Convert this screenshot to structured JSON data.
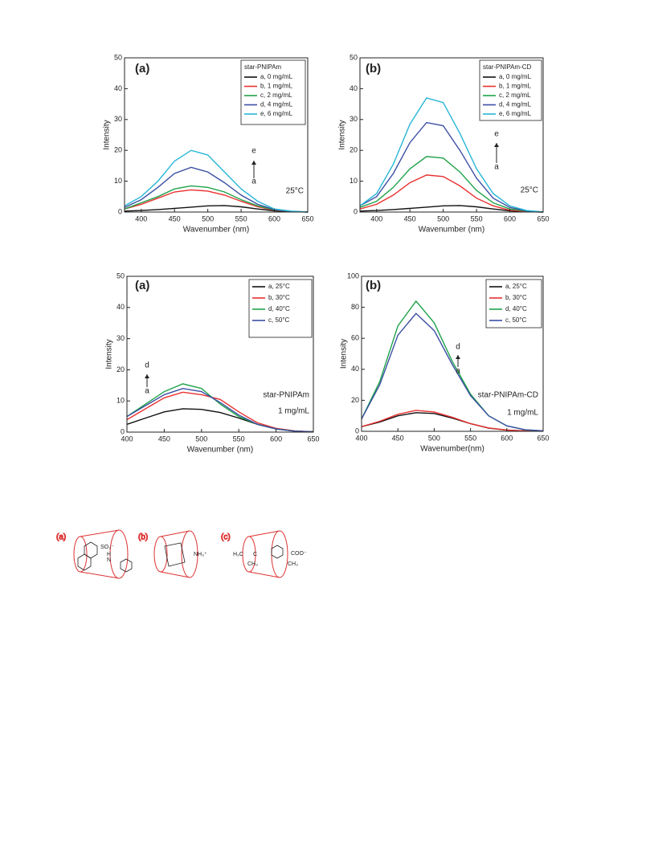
{
  "chart_data": [
    {
      "type": "line",
      "xlabel": "Wavenumber (nm)",
      "ylabel": "Intensity",
      "legend_title": "star-PNIPAm",
      "legend": "upper right",
      "xlim": [
        375,
        650
      ],
      "ylim": [
        0,
        50
      ],
      "xticks": [
        400,
        450,
        500,
        550,
        600,
        650
      ],
      "yticks": [
        0,
        10,
        20,
        30,
        40,
        50
      ],
      "annotations": [
        "(a)",
        "e",
        "a",
        "25°C"
      ],
      "x": [
        375,
        400,
        425,
        450,
        475,
        500,
        525,
        550,
        575,
        600,
        625,
        650
      ],
      "series": [
        {
          "name": "a, 0 mg/mL",
          "color": "#111111",
          "values": [
            0.3,
            0.5,
            0.8,
            1.2,
            1.6,
            2.0,
            2.1,
            1.7,
            1.0,
            0.4,
            0.1,
            0
          ]
        },
        {
          "name": "b, 1 mg/mL",
          "color": "#e8312f",
          "values": [
            1,
            2.5,
            4.5,
            6.5,
            7.2,
            6.8,
            5.5,
            3.5,
            1.7,
            0.6,
            0.2,
            0
          ]
        },
        {
          "name": "c, 2 mg/mL",
          "color": "#1fa34a",
          "values": [
            1,
            3,
            5,
            7.5,
            8.5,
            8,
            6.5,
            4,
            2,
            0.7,
            0.2,
            0
          ]
        },
        {
          "name": "d, 4 mg/mL",
          "color": "#3b4fa3",
          "values": [
            1.5,
            4,
            8,
            12.5,
            14.5,
            13,
            9.5,
            5.5,
            2.5,
            0.8,
            0.2,
            0
          ]
        },
        {
          "name": "e, 6 mg/mL",
          "color": "#27b6d6",
          "values": [
            2,
            5,
            10,
            16.5,
            20,
            18.5,
            13,
            7.5,
            3.5,
            1,
            0.3,
            0
          ]
        }
      ]
    },
    {
      "type": "line",
      "xlabel": "Wavenumber (nm)",
      "ylabel": "Intensity",
      "legend_title": "star-PNIPAm-CD",
      "legend": "upper right",
      "xlim": [
        375,
        650
      ],
      "ylim": [
        0,
        50
      ],
      "xticks": [
        400,
        450,
        500,
        550,
        600,
        650
      ],
      "yticks": [
        0,
        10,
        20,
        30,
        40,
        50
      ],
      "annotations": [
        "(b)",
        "e",
        "a",
        "25°C"
      ],
      "x": [
        375,
        400,
        425,
        450,
        475,
        500,
        525,
        550,
        575,
        600,
        625,
        650
      ],
      "series": [
        {
          "name": "a, 0 mg/mL",
          "color": "#111111",
          "values": [
            0.3,
            0.5,
            0.8,
            1.2,
            1.6,
            2.0,
            2.1,
            1.7,
            1.0,
            0.4,
            0.1,
            0
          ]
        },
        {
          "name": "b, 1 mg/mL",
          "color": "#e8312f",
          "values": [
            1,
            2.5,
            5.5,
            9.5,
            12,
            11.5,
            8.5,
            4.5,
            2,
            0.6,
            0.2,
            0
          ]
        },
        {
          "name": "c, 2 mg/mL",
          "color": "#1fa34a",
          "values": [
            1.5,
            3.5,
            8,
            14,
            18,
            17.5,
            13,
            7,
            3,
            1,
            0.3,
            0
          ]
        },
        {
          "name": "d, 4 mg/mL",
          "color": "#3b4fa3",
          "values": [
            2,
            5,
            12.5,
            22.5,
            29,
            28,
            20,
            11,
            4.5,
            1.5,
            0.4,
            0
          ]
        },
        {
          "name": "e, 6 mg/mL",
          "color": "#27b6d6",
          "values": [
            2,
            6,
            15.5,
            28.5,
            37,
            35.5,
            25.5,
            14,
            6,
            2,
            0.5,
            0
          ]
        }
      ]
    },
    {
      "type": "line",
      "xlabel": "Wavenumber (nm)",
      "ylabel": "Intensity",
      "legend": "upper right",
      "xlim": [
        400,
        650
      ],
      "ylim": [
        0,
        50
      ],
      "xticks": [
        400,
        450,
        500,
        550,
        600,
        650
      ],
      "yticks": [
        0,
        10,
        20,
        30,
        40,
        50
      ],
      "annotations": [
        "(a)",
        "d",
        "a",
        "star-PNIPAm",
        "1 mg/mL"
      ],
      "x": [
        400,
        425,
        450,
        475,
        500,
        525,
        550,
        575,
        600,
        625,
        650
      ],
      "series": [
        {
          "name": "a,  25°C",
          "color": "#111111",
          "values": [
            2.5,
            4.5,
            6.5,
            7.5,
            7.3,
            6.3,
            4.5,
            2.5,
            1,
            0.3,
            0.1
          ]
        },
        {
          "name": "b,  30°C",
          "color": "#e8312f",
          "values": [
            4,
            7.5,
            11,
            12.8,
            12,
            10.5,
            6.5,
            3,
            1.2,
            0.4,
            0.1
          ]
        },
        {
          "name": "d,  40°C",
          "color": "#1fa34a",
          "values": [
            5,
            9,
            13,
            15.5,
            14,
            9,
            5,
            2.5,
            1,
            0.3,
            0.1
          ]
        },
        {
          "name": "c,  50°C",
          "color": "#3b4fa3",
          "values": [
            5,
            8.5,
            12,
            14,
            13,
            9.5,
            5.5,
            2.5,
            1,
            0.3,
            0.1
          ]
        }
      ]
    },
    {
      "type": "line",
      "xlabel": "Wavenumber(nm)",
      "ylabel": "Intensity",
      "legend": "upper right",
      "xlim": [
        400,
        650
      ],
      "ylim": [
        0,
        100
      ],
      "xticks": [
        400,
        450,
        500,
        550,
        600,
        650
      ],
      "yticks": [
        0,
        20,
        40,
        60,
        80,
        100
      ],
      "annotations": [
        "(b)",
        "d",
        "a",
        "star-PNIPAm-CD",
        "1 mg/mL"
      ],
      "x": [
        400,
        425,
        450,
        475,
        500,
        525,
        550,
        575,
        600,
        625,
        650
      ],
      "series": [
        {
          "name": "a, 25°C",
          "color": "#111111",
          "values": [
            3,
            6,
            10,
            12,
            11.5,
            8.5,
            5,
            2,
            0.8,
            0.3,
            0.1
          ]
        },
        {
          "name": "b, 30°C",
          "color": "#e8312f",
          "values": [
            3,
            6.5,
            11,
            13.5,
            12.5,
            9,
            5,
            2.2,
            0.8,
            0.3,
            0.1
          ]
        },
        {
          "name": "d, 40°C",
          "color": "#1fa34a",
          "values": [
            8,
            32,
            68,
            84,
            70,
            45,
            24,
            10,
            3.5,
            1,
            0.3
          ]
        },
        {
          "name": "c, 50°C",
          "color": "#3b4fa3",
          "values": [
            8,
            30,
            62,
            76,
            65,
            43,
            23,
            10,
            3.5,
            1,
            0.3
          ]
        }
      ]
    }
  ],
  "figure": {
    "labels": [
      "(a)",
      "(b)",
      "(c)"
    ],
    "groups": [
      "SO₃⁻",
      "H",
      "N",
      "NH₃⁺",
      "H₃C",
      "C",
      "CH₃",
      "COO⁻"
    ]
  }
}
